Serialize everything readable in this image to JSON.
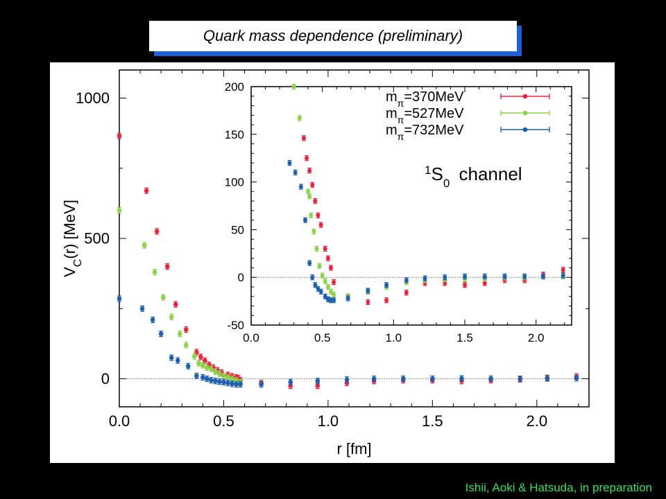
{
  "header": {
    "title": "Quark mass dependence (preliminary)"
  },
  "footer": {
    "credit": "Ishii, Aoki & Hatsuda, in preparation"
  },
  "colors": {
    "s370": "#e8233f",
    "s527": "#8bd14a",
    "s732": "#1d5fae",
    "title_shadow": "#1f5fd6",
    "credit": "#39e05a"
  },
  "chart_data": [
    {
      "type": "scatter",
      "title": "",
      "xlabel": "r [fm]",
      "ylabel": "V_C(r) [MeV]",
      "xlim": [
        0.0,
        2.25
      ],
      "ylim": [
        -100,
        1100
      ],
      "xticks": [
        0.0,
        0.5,
        1.0,
        1.5,
        2.0
      ],
      "xtick_labels": [
        "0.0",
        "0.5",
        "1.0",
        "1.5",
        "2.0"
      ],
      "yticks": [
        0,
        500,
        1000
      ],
      "ytick_labels": [
        "0",
        "500",
        "1000"
      ],
      "zero_line": true,
      "series": [
        {
          "name": "mπ=370MeV",
          "color": "#e8233f",
          "x": [
            0.0,
            0.13,
            0.18,
            0.23,
            0.27,
            0.32,
            0.37,
            0.39,
            0.41,
            0.43,
            0.45,
            0.47,
            0.49,
            0.52,
            0.54,
            0.56,
            0.57,
            0.58,
            0.68,
            0.82,
            0.95,
            1.09,
            1.22,
            1.36,
            1.5,
            1.64,
            1.78,
            1.92,
            2.05,
            2.19
          ],
          "y": [
            865,
            670,
            525,
            400,
            265,
            175,
            95,
            78,
            65,
            50,
            40,
            30,
            22,
            14,
            9,
            5,
            2,
            -5,
            -15,
            -25,
            -25,
            -15,
            -8,
            -5,
            -5,
            -8,
            -5,
            -2,
            3,
            8
          ]
        },
        {
          "name": "mπ=527MeV",
          "color": "#8bd14a",
          "x": [
            0.0,
            0.12,
            0.17,
            0.21,
            0.25,
            0.29,
            0.32,
            0.36,
            0.38,
            0.4,
            0.42,
            0.44,
            0.46,
            0.48,
            0.5,
            0.52,
            0.54,
            0.56,
            0.58
          ],
          "y": [
            600,
            475,
            380,
            290,
            220,
            160,
            120,
            80,
            55,
            48,
            40,
            35,
            25,
            18,
            10,
            5,
            0,
            -5,
            -12
          ]
        },
        {
          "name": "mπ=732MeV",
          "color": "#1d5fae",
          "x": [
            0.0,
            0.11,
            0.16,
            0.2,
            0.25,
            0.28,
            0.33,
            0.37,
            0.4,
            0.42,
            0.44,
            0.46,
            0.48,
            0.5,
            0.52,
            0.54,
            0.56,
            0.58,
            0.68,
            0.82,
            0.95,
            1.09,
            1.22,
            1.36,
            1.5,
            1.64,
            1.78,
            1.92,
            2.05,
            2.19
          ],
          "y": [
            285,
            250,
            210,
            160,
            75,
            65,
            45,
            10,
            5,
            0,
            -5,
            -8,
            -10,
            -12,
            -15,
            -18,
            -20,
            -20,
            -20,
            -12,
            -8,
            -3,
            0,
            0,
            0,
            1,
            0,
            0,
            1,
            2
          ]
        }
      ]
    },
    {
      "type": "scatter",
      "title": "",
      "annotation": {
        "sup": "1",
        "main": "S",
        "sub": "0",
        "rest": " channel"
      },
      "xlim": [
        0.0,
        2.25
      ],
      "ylim": [
        -50,
        200
      ],
      "xticks": [
        0.0,
        0.5,
        1.0,
        1.5,
        2.0
      ],
      "xtick_labels": [
        "0.0",
        "0.5",
        "1.0",
        "1.5",
        "2.0"
      ],
      "yticks": [
        -50,
        0,
        50,
        100,
        150,
        200
      ],
      "ytick_labels": [
        "-50",
        "0",
        "50",
        "100",
        "150",
        "200"
      ],
      "zero_line": true,
      "legend": {
        "position": "top-right",
        "entries": [
          {
            "prefix": "m",
            "sub": "π",
            "value": "=370MeV",
            "color": "#e8233f"
          },
          {
            "prefix": "m",
            "sub": "π",
            "value": "=527MeV",
            "color": "#8bd14a"
          },
          {
            "prefix": "m",
            "sub": "π",
            "value": "=732MeV",
            "color": "#1d5fae"
          }
        ]
      },
      "series": [
        {
          "name": "mπ=370MeV",
          "color": "#e8233f",
          "x": [
            0.37,
            0.39,
            0.41,
            0.43,
            0.45,
            0.47,
            0.49,
            0.52,
            0.54,
            0.56,
            0.58,
            0.68,
            0.82,
            0.95,
            1.09,
            1.22,
            1.36,
            1.5,
            1.64,
            1.78,
            1.92,
            2.05,
            2.19
          ],
          "y": [
            146,
            125,
            112,
            97,
            80,
            65,
            55,
            30,
            20,
            10,
            -5,
            -20,
            -26,
            -24,
            -16,
            -6,
            -6,
            -8,
            -6,
            -3,
            -3,
            3,
            8
          ]
        },
        {
          "name": "mπ=527MeV",
          "color": "#8bd14a",
          "x": [
            0.3,
            0.34,
            0.4,
            0.41,
            0.42,
            0.44,
            0.46,
            0.48,
            0.5,
            0.52,
            0.54,
            0.56,
            0.58,
            0.68,
            0.82,
            0.95,
            1.09,
            1.22,
            1.36,
            1.5,
            1.64,
            1.78,
            1.92,
            2.05,
            2.19
          ],
          "y": [
            200,
            167,
            90,
            85,
            65,
            48,
            30,
            12,
            2,
            -4,
            -10,
            -15,
            -18,
            -20,
            -15,
            -10,
            -5,
            -3,
            -2,
            -2,
            -1,
            0,
            0,
            1,
            1
          ]
        },
        {
          "name": "mπ=732MeV",
          "color": "#1d5fae",
          "x": [
            0.27,
            0.31,
            0.35,
            0.38,
            0.41,
            0.43,
            0.45,
            0.47,
            0.49,
            0.52,
            0.54,
            0.56,
            0.58,
            0.68,
            0.82,
            0.95,
            1.09,
            1.22,
            1.36,
            1.5,
            1.64,
            1.78,
            1.92,
            2.05,
            2.19
          ],
          "y": [
            120,
            110,
            95,
            60,
            15,
            0,
            -8,
            -12,
            -15,
            -20,
            -23,
            -24,
            -24,
            -22,
            -14,
            -8,
            -3,
            -1,
            0,
            1,
            1,
            1,
            1,
            1,
            2
          ]
        }
      ]
    }
  ]
}
